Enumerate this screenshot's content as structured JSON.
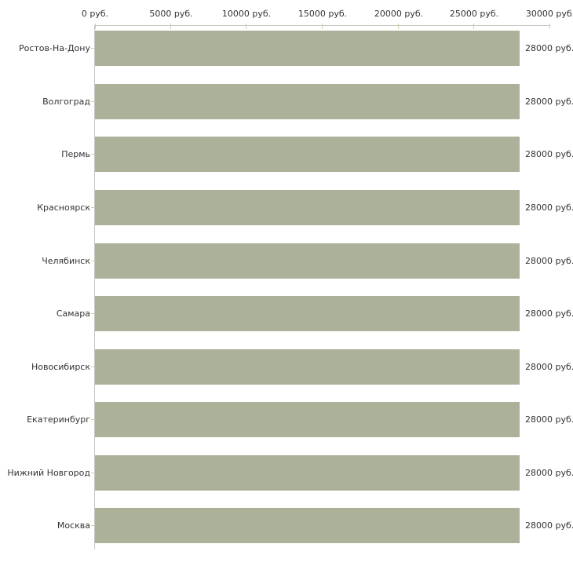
{
  "chart_data": {
    "type": "bar",
    "orientation": "horizontal",
    "categories": [
      "Ростов-На-Дону",
      "Волгоград",
      "Пермь",
      "Красноярск",
      "Челябинск",
      "Самара",
      "Новосибирск",
      "Екатеринбург",
      "Нижний Новгород",
      "Москва"
    ],
    "values": [
      28000,
      28000,
      28000,
      28000,
      28000,
      28000,
      28000,
      28000,
      28000,
      28000
    ],
    "value_labels": [
      "28000 руб.",
      "28000 руб.",
      "28000 руб.",
      "28000 руб.",
      "28000 руб.",
      "28000 руб.",
      "28000 руб.",
      "28000 руб.",
      "28000 руб.",
      "28000 руб."
    ],
    "x_ticks": [
      {
        "value": 0,
        "label": "0 руб."
      },
      {
        "value": 5000,
        "label": "5000 руб."
      },
      {
        "value": 10000,
        "label": "10000 руб."
      },
      {
        "value": 15000,
        "label": "15000 руб."
      },
      {
        "value": 20000,
        "label": "20000 руб."
      },
      {
        "value": 25000,
        "label": "25000 руб."
      },
      {
        "value": 30000,
        "label": "30000 руб."
      }
    ],
    "xlim": [
      0,
      30000
    ],
    "unit": "руб.",
    "grid": false,
    "legend": null,
    "axis_position": "top",
    "colors": {
      "bar": "#acb299",
      "axis_line": "#c7c8c2",
      "tick_mark": "#ccd0ae",
      "text": "#333333",
      "background": "#ffffff"
    }
  }
}
